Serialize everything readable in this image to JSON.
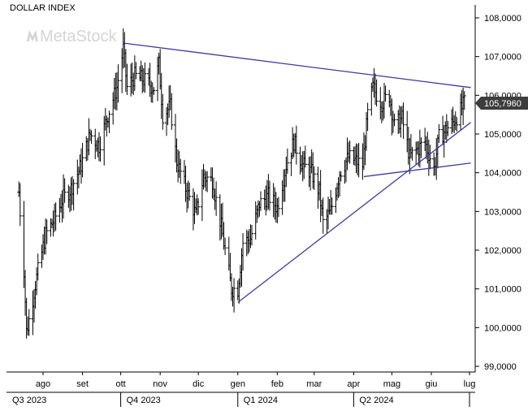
{
  "chart_data": {
    "type": "ohlc",
    "title": "DOLLAR INDEX",
    "watermark": "MetaStock",
    "last_price_label": "105,7960",
    "y_ticks": [
      "108,0000",
      "107,0000",
      "106,0000",
      "105,0000",
      "104,0000",
      "103,0000",
      "102,0000",
      "101,0000",
      "100,0000",
      "99,0000"
    ],
    "y_tick_values": [
      108,
      107,
      106,
      105,
      104,
      103,
      102,
      101,
      100,
      99
    ],
    "ylim": [
      98.6,
      108.3
    ],
    "last_price": 105.796,
    "x_months": [
      "ago",
      "set",
      "ott",
      "nov",
      "dic",
      "gen",
      "feb",
      "mar",
      "apr",
      "mag",
      "giu",
      "lug"
    ],
    "x_quarters": [
      "Q3 2023",
      "Q4 2023",
      "Q1 2024",
      "Q2 2024"
    ],
    "colors": {
      "bars": "#000000",
      "trendlines": "#3a3aa8",
      "axis": "#000000",
      "label_bg": "#3d3d3d",
      "label_text": "#ffffff",
      "watermark": "#d4d4d4"
    },
    "trendlines": [
      {
        "name": "",
        "from": [
          "2023-10-03",
          107.35
        ],
        "to": [
          "2024-07-02",
          106.2
        ]
      },
      {
        "name": "",
        "from": [
          "2024-01-01",
          100.65
        ],
        "to": [
          "2024-07-02",
          105.3
        ]
      },
      {
        "name": "",
        "from": [
          "2024-04-09",
          103.9
        ],
        "to": [
          "2024-07-02",
          104.25
        ]
      }
    ],
    "series_anchors": [
      [
        "2023-07-13",
        103.5
      ],
      [
        "2023-07-17",
        101.5
      ],
      [
        "2023-07-19",
        99.9
      ],
      [
        "2023-07-21",
        100.2
      ],
      [
        "2023-07-27",
        101.3
      ],
      [
        "2023-08-03",
        102.4
      ],
      [
        "2023-08-10",
        102.8
      ],
      [
        "2023-08-16",
        103.3
      ],
      [
        "2023-08-23",
        103.6
      ],
      [
        "2023-08-31",
        104.2
      ],
      [
        "2023-09-07",
        105.0
      ],
      [
        "2023-09-14",
        104.7
      ],
      [
        "2023-09-21",
        105.5
      ],
      [
        "2023-09-28",
        106.2
      ],
      [
        "2023-10-03",
        107.2
      ],
      [
        "2023-10-06",
        106.2
      ],
      [
        "2023-10-12",
        106.5
      ],
      [
        "2023-10-19",
        106.4
      ],
      [
        "2023-10-27",
        106.2
      ],
      [
        "2023-10-31",
        106.8
      ],
      [
        "2023-11-03",
        105.5
      ],
      [
        "2023-11-09",
        105.7
      ],
      [
        "2023-11-14",
        104.3
      ],
      [
        "2023-11-21",
        103.6
      ],
      [
        "2023-11-29",
        102.9
      ],
      [
        "2023-12-05",
        103.9
      ],
      [
        "2023-12-12",
        103.8
      ],
      [
        "2023-12-19",
        102.6
      ],
      [
        "2023-12-27",
        101.0
      ],
      [
        "2024-01-01",
        101.0
      ],
      [
        "2024-01-05",
        102.2
      ],
      [
        "2024-01-11",
        102.3
      ],
      [
        "2024-01-18",
        103.2
      ],
      [
        "2024-01-25",
        103.4
      ],
      [
        "2024-02-01",
        103.1
      ],
      [
        "2024-02-08",
        104.2
      ],
      [
        "2024-02-14",
        104.8
      ],
      [
        "2024-02-21",
        104.2
      ],
      [
        "2024-02-28",
        104.0
      ],
      [
        "2024-03-05",
        103.5
      ],
      [
        "2024-03-08",
        102.7
      ],
      [
        "2024-03-14",
        103.0
      ],
      [
        "2024-03-21",
        104.0
      ],
      [
        "2024-03-28",
        104.4
      ],
      [
        "2024-04-03",
        104.3
      ],
      [
        "2024-04-08",
        104.2
      ],
      [
        "2024-04-12",
        105.5
      ],
      [
        "2024-04-16",
        106.2
      ],
      [
        "2024-04-23",
        105.8
      ],
      [
        "2024-04-29",
        106.0
      ],
      [
        "2024-05-03",
        105.2
      ],
      [
        "2024-05-09",
        105.4
      ],
      [
        "2024-05-15",
        104.4
      ],
      [
        "2024-05-21",
        104.6
      ],
      [
        "2024-05-27",
        104.8
      ],
      [
        "2024-06-03",
        104.1
      ],
      [
        "2024-06-07",
        104.9
      ],
      [
        "2024-06-12",
        105.1
      ],
      [
        "2024-06-18",
        105.3
      ],
      [
        "2024-06-24",
        105.6
      ],
      [
        "2024-06-27",
        105.8
      ]
    ]
  }
}
